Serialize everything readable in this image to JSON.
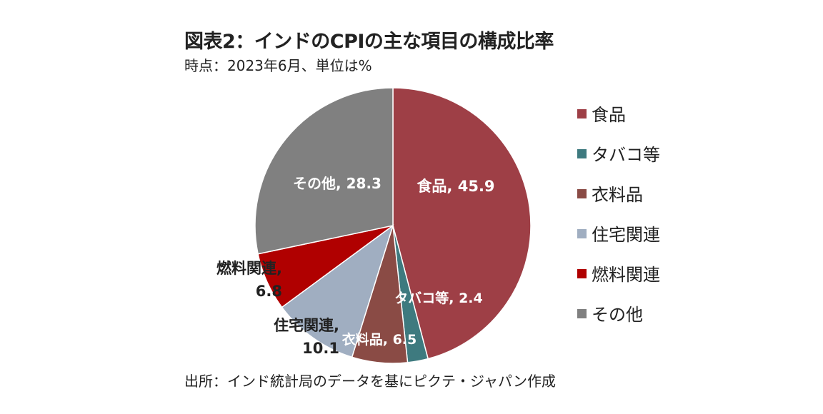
{
  "header": {
    "title": "図表2：インドのCPIの主な項目の構成比率",
    "subtitle": "時点：2023年6月、単位は%"
  },
  "footer": {
    "source": "出所：インド統計局のデータを基にピクテ・ジャパン作成"
  },
  "chart_data": {
    "type": "pie",
    "unit": "%",
    "legend_position": "right",
    "slices": [
      {
        "category": "食品",
        "value": 45.9,
        "color": "#9e3f46",
        "label_lines": [
          "食品, 45.9"
        ],
        "label_color": "#ffffff"
      },
      {
        "category": "タバコ等",
        "value": 2.4,
        "color": "#3e7a7f",
        "label_lines": [
          "タバコ等, 2.4"
        ],
        "label_color": "#ffffff"
      },
      {
        "category": "衣料品",
        "value": 6.5,
        "color": "#8a4b45",
        "label_lines": [
          "衣料品, 6.5"
        ],
        "label_color": "#ffffff"
      },
      {
        "category": "住宅関連",
        "value": 10.1,
        "color": "#a0aec1",
        "label_lines": [
          "住宅関連,",
          "10.1"
        ],
        "label_color": "#222222"
      },
      {
        "category": "燃料関連",
        "value": 6.8,
        "color": "#b00000",
        "label_lines": [
          "燃料関連,",
          "6.8"
        ],
        "label_color": "#222222"
      },
      {
        "category": "その他",
        "value": 28.3,
        "color": "#808080",
        "label_lines": [
          "その他, 28.3"
        ],
        "label_color": "#ffffff"
      }
    ]
  }
}
